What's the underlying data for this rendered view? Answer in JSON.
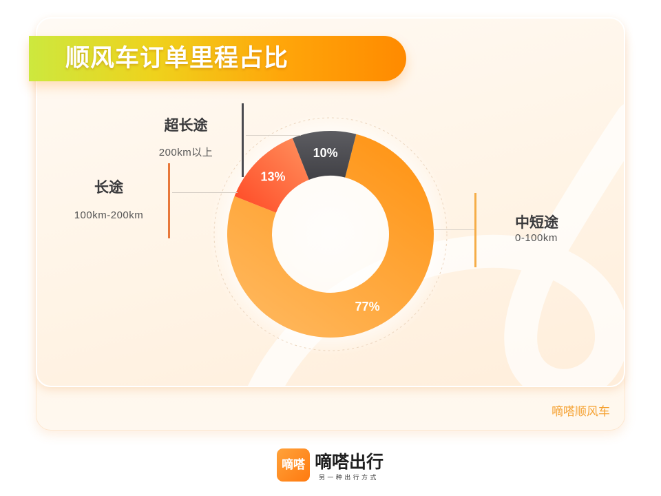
{
  "chart_data": {
    "type": "pie",
    "donut": true,
    "title": "顺风车订单里程占比",
    "slices": [
      {
        "name": "中短途",
        "range": "0-100km",
        "value": 77,
        "label": "77%",
        "color": "#f5ad48",
        "gradient": [
          "#ff9414",
          "#ffb85e"
        ]
      },
      {
        "name": "长途",
        "range": "100km-200km",
        "value": 13,
        "label": "13%",
        "color": "#e8783a",
        "gradient": [
          "#ff8a58",
          "#ff4f2a"
        ]
      },
      {
        "name": "超长途",
        "range": "200km以上",
        "value": 10,
        "label": "10%",
        "color": "#4a4a4f",
        "gradient": [
          "#5c5c61",
          "#414146"
        ]
      }
    ]
  },
  "footer": {
    "brand": "嘀嗒顺风车"
  },
  "logo": {
    "mark": "嘀嗒",
    "name": "嘀嗒出行",
    "tagline": "另一种出行方式"
  },
  "colors": {
    "title_gradient": [
      "#cde83e",
      "#efd21c",
      "#ffa60a",
      "#ff8a00"
    ],
    "brand_orange": "#ff8a12",
    "footer_text": "#f5a02e"
  }
}
